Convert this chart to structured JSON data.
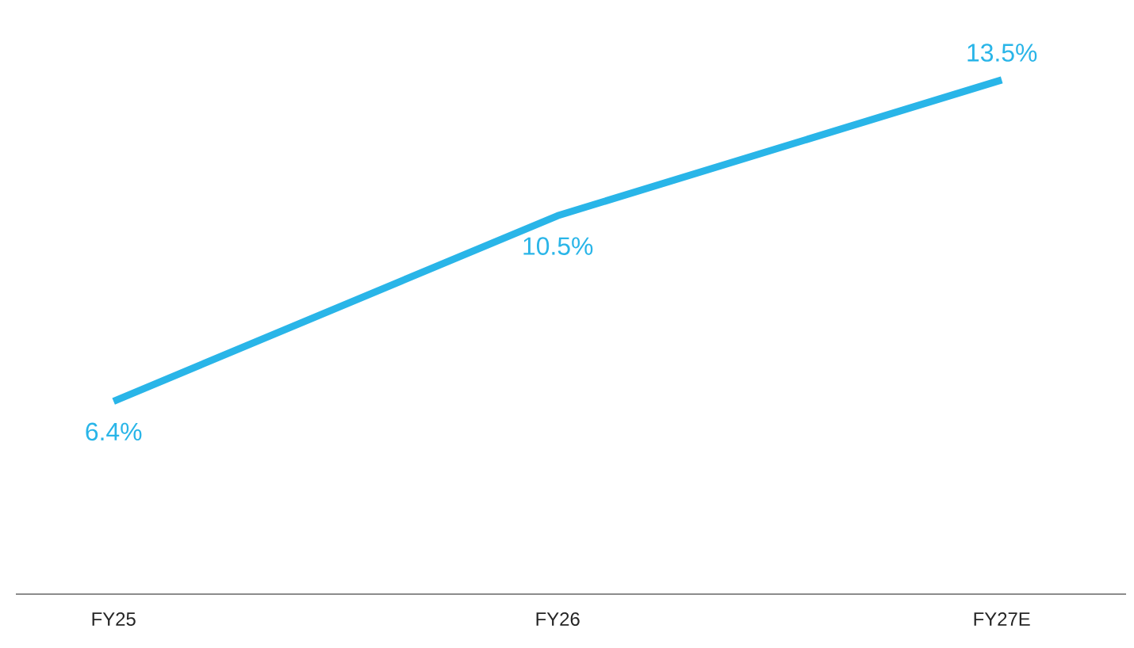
{
  "chart_data": {
    "type": "line",
    "categories": [
      "FY25",
      "FY26",
      "FY27E"
    ],
    "values": [
      6.4,
      10.5,
      13.5
    ],
    "value_labels": [
      "6.4%",
      "10.5%",
      "13.5%"
    ],
    "color": "#29b5e8",
    "marker": "none",
    "line_style": "solid"
  }
}
